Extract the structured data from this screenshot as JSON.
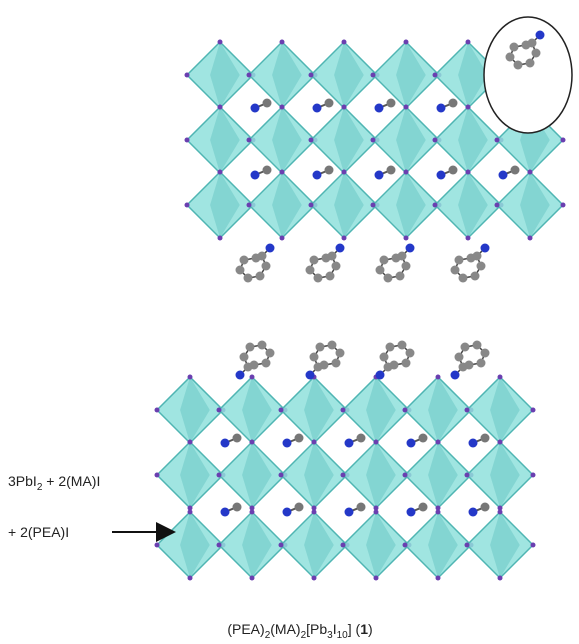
{
  "reaction": {
    "line1": [
      {
        "text": "3PbI"
      },
      {
        "sub": "2"
      },
      {
        "text": " + 2(MA)I"
      }
    ],
    "line2": [
      {
        "text": "+ 2(PEA)I"
      }
    ]
  },
  "caption": [
    {
      "text": "(PEA)"
    },
    {
      "sub": "2"
    },
    {
      "text": "(MA)"
    },
    {
      "sub": "2"
    },
    {
      "text": "[Pb"
    },
    {
      "sub": "3"
    },
    {
      "text": "I"
    },
    {
      "sub": "10"
    },
    {
      "text": "] ("
    },
    {
      "bold": "1"
    },
    {
      "text": ")"
    }
  ]
}
